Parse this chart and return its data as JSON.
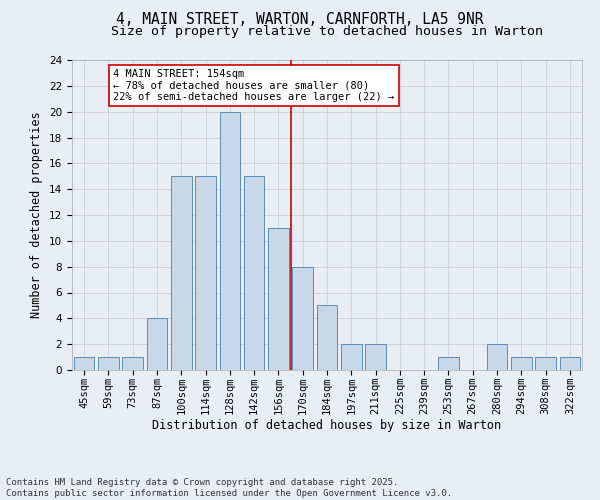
{
  "title1": "4, MAIN STREET, WARTON, CARNFORTH, LA5 9NR",
  "title2": "Size of property relative to detached houses in Warton",
  "xlabel": "Distribution of detached houses by size in Warton",
  "ylabel": "Number of detached properties",
  "categories": [
    "45sqm",
    "59sqm",
    "73sqm",
    "87sqm",
    "100sqm",
    "114sqm",
    "128sqm",
    "142sqm",
    "156sqm",
    "170sqm",
    "184sqm",
    "197sqm",
    "211sqm",
    "225sqm",
    "239sqm",
    "253sqm",
    "267sqm",
    "280sqm",
    "294sqm",
    "308sqm",
    "322sqm"
  ],
  "values": [
    1,
    1,
    1,
    4,
    15,
    15,
    20,
    15,
    11,
    8,
    5,
    2,
    2,
    0,
    0,
    1,
    0,
    2,
    1,
    1,
    1
  ],
  "bar_color": "#c8d8e8",
  "bar_edge_color": "#5b8db8",
  "vline_color": "#cc0000",
  "annotation_text": "4 MAIN STREET: 154sqm\n← 78% of detached houses are smaller (80)\n22% of semi-detached houses are larger (22) →",
  "annotation_box_facecolor": "#ffffff",
  "annotation_box_edgecolor": "#cc0000",
  "ylim": [
    0,
    24
  ],
  "yticks": [
    0,
    2,
    4,
    6,
    8,
    10,
    12,
    14,
    16,
    18,
    20,
    22,
    24
  ],
  "bg_color": "#e8eef4",
  "grid_color": "#c8c8c8",
  "footer": "Contains HM Land Registry data © Crown copyright and database right 2025.\nContains public sector information licensed under the Open Government Licence v3.0.",
  "title_fontsize": 10.5,
  "subtitle_fontsize": 9.5,
  "axis_label_fontsize": 8.5,
  "tick_fontsize": 7.5,
  "annotation_fontsize": 7.5,
  "footer_fontsize": 6.5,
  "vline_x": 8.5
}
